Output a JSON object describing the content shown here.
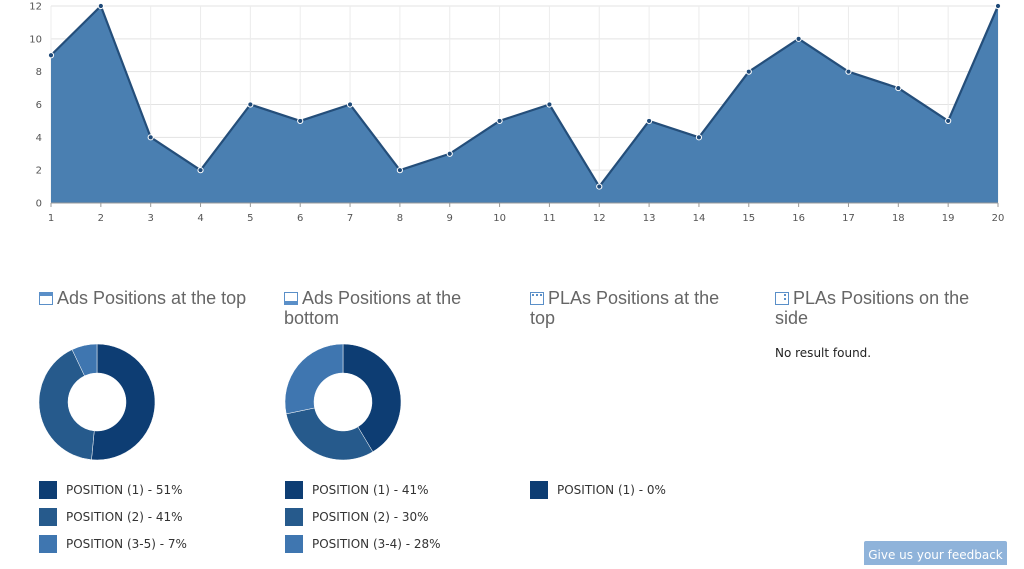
{
  "chart_data": [
    {
      "type": "area",
      "x": [
        1,
        2,
        3,
        4,
        5,
        6,
        7,
        8,
        9,
        10,
        11,
        12,
        13,
        14,
        15,
        16,
        17,
        18,
        19,
        20
      ],
      "values": [
        9,
        12,
        4,
        2,
        6,
        5,
        6,
        2,
        3,
        5,
        6,
        1,
        5,
        4,
        8,
        10,
        8,
        7,
        5,
        12
      ],
      "ylim": [
        0,
        12
      ],
      "yticks": [
        0,
        2,
        4,
        6,
        8,
        10,
        12
      ],
      "grid": true,
      "color": "#4a7fb1"
    },
    {
      "type": "pie",
      "title": "Ads Positions at the top",
      "slices": [
        {
          "label": "POSITION (1) - 51%",
          "value": 51,
          "color": "#0d3d73"
        },
        {
          "label": "POSITION (2) - 41%",
          "value": 41,
          "color": "#265a8c"
        },
        {
          "label": "POSITION (3-5) - 7%",
          "value": 7,
          "color": "#3f76b0"
        }
      ]
    },
    {
      "type": "pie",
      "title": "Ads Positions at the bottom",
      "slices": [
        {
          "label": "POSITION (1) - 41%",
          "value": 41,
          "color": "#0d3d73"
        },
        {
          "label": "POSITION (2) - 30%",
          "value": 30,
          "color": "#265a8c"
        },
        {
          "label": "POSITION (3-4) - 28%",
          "value": 28,
          "color": "#3f76b0"
        }
      ]
    },
    {
      "type": "pie",
      "title": "PLAs Positions at the top",
      "slices": [
        {
          "label": "POSITION (1) - 0%",
          "value": 0,
          "color": "#0d3d73"
        }
      ]
    },
    {
      "type": "pie",
      "title": "PLAs Positions on the side",
      "slices": [],
      "empty_message": "No result found."
    }
  ],
  "panels": {
    "ads_top": {
      "title": "Ads Positions at the top",
      "icon": "ads-top-icon"
    },
    "ads_bottom": {
      "title": "Ads Positions at the bottom",
      "icon": "ads-bottom-icon"
    },
    "plas_top": {
      "title": "PLAs Positions at the top",
      "icon": "plas-top-icon"
    },
    "plas_side": {
      "title": "PLAs Positions on the side",
      "icon": "plas-side-icon",
      "empty": "No result found."
    }
  },
  "feedback_label": "Give us your feedback"
}
